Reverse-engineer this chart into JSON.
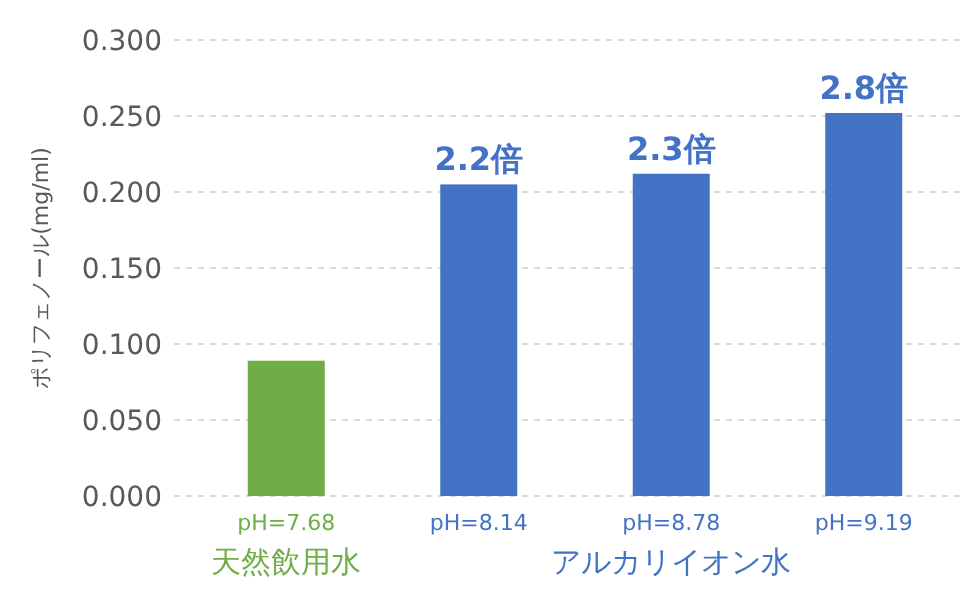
{
  "chart_data": {
    "type": "bar",
    "ylabel": "ポリフェノール(mg/ml)",
    "categories": [
      "pH=7.68",
      "pH=8.14",
      "pH=8.78",
      "pH=9.19"
    ],
    "values": [
      0.089,
      0.205,
      0.212,
      0.252
    ],
    "colors": [
      "#70ad47",
      "#4472c4",
      "#4472c4",
      "#4472c4"
    ],
    "ylim": [
      0,
      0.3
    ],
    "yticks": [
      {
        "value": 0,
        "label": "0.000"
      },
      {
        "value": 0.05,
        "label": "0.050"
      },
      {
        "value": 0.1,
        "label": "0.100"
      },
      {
        "value": 0.15,
        "label": "0.150"
      },
      {
        "value": 0.2,
        "label": "0.200"
      },
      {
        "value": 0.25,
        "label": "0.250"
      },
      {
        "value": 0.3,
        "label": "0.300"
      }
    ],
    "grid": "y",
    "annotations": [
      "天然飲用水",
      "アルカリイオン水",
      {
        "text": "2.2倍",
        "x": "pH=8.14",
        "y": 0.205
      },
      {
        "text": "2.3倍",
        "x": "pH=8.78",
        "y": 0.212
      },
      {
        "text": "2.8倍",
        "x": "pH=9.19",
        "y": 0.252
      }
    ]
  }
}
